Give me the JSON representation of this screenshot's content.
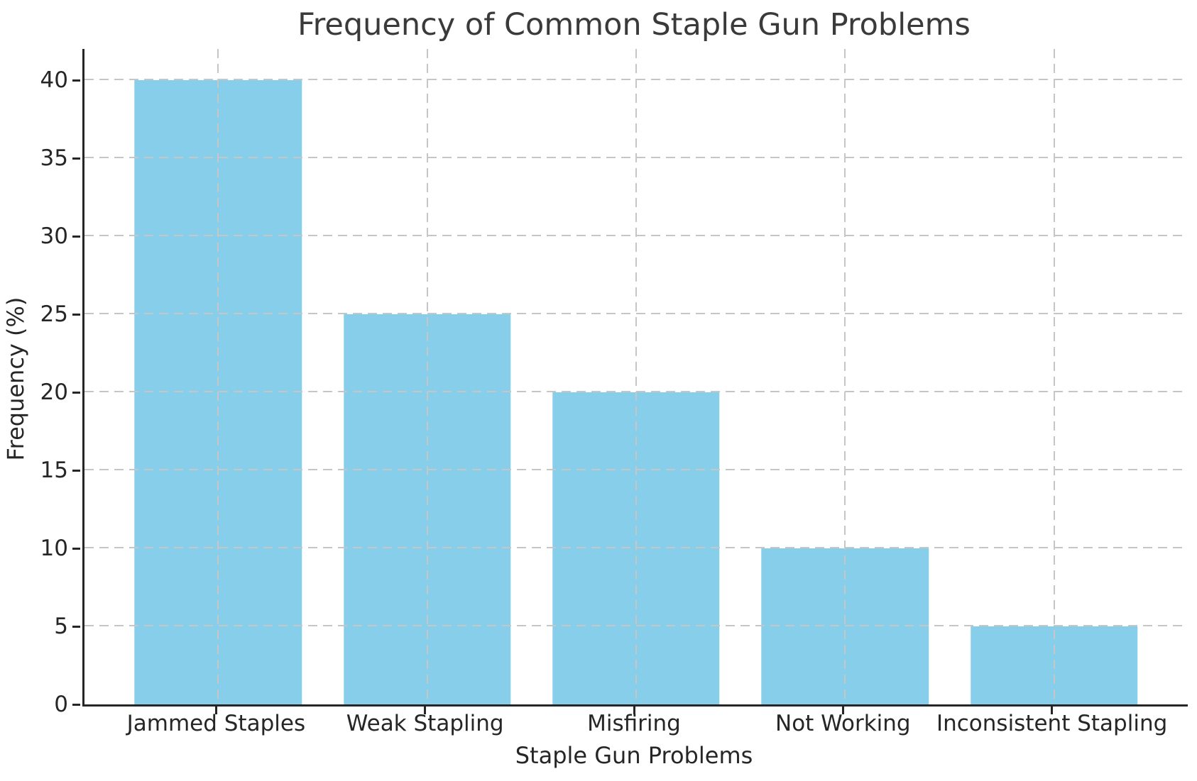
{
  "chart_data": {
    "type": "bar",
    "title": "Frequency of Common Staple Gun Problems",
    "xlabel": "Staple Gun Problems",
    "ylabel": "Frequency (%)",
    "categories": [
      "Jammed Staples",
      "Weak Stapling",
      "Misfiring",
      "Not Working",
      "Inconsistent Stapling"
    ],
    "values": [
      40,
      25,
      20,
      10,
      5
    ],
    "yticks": [
      0,
      5,
      10,
      15,
      20,
      25,
      30,
      35,
      40
    ],
    "ylim": [
      0,
      42
    ],
    "grid": "dashed, horizontal and vertical, drawn above bars",
    "legend_position": "none",
    "colors": {
      "bar": "#87CEEB",
      "gridline": "#c6c6c6",
      "axis": "#262626",
      "tick_text": "#262626",
      "title_text": "#3a3a3a",
      "background": "#ffffff"
    }
  }
}
